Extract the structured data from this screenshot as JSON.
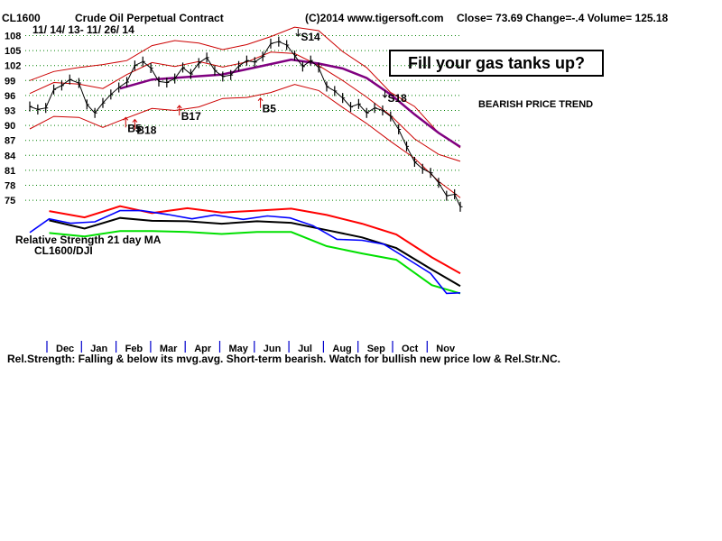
{
  "header": {
    "ticker": "CL1600",
    "contract": "Crude Oil Perpetual Contract",
    "copyright": "(C)2014 www.tigersoft.com",
    "quote": "Close=  73.69  Change=-.4 Volume= 125.18",
    "date_range": "11/ 14/ 13- 11/ 26/ 14"
  },
  "callout": "Fill your gas tanks up?",
  "trend_label": "BEARISH PRICE TREND",
  "rs_label_1": "Relative Strength 21 day MA",
  "rs_label_2": "CL1600/DJI",
  "footer": "Rel.Strength: Falling & below its mvg.avg. Short-term bearish. Watch for bullish new price low & Rel.Str.NC.",
  "colors": {
    "price": "#000000",
    "bands": "#cc0000",
    "ma": "#800080",
    "rs_upper": "#ff0000",
    "rs_lower": "#00e000",
    "rs_ma": "#000000",
    "rs_line": "#0000ff",
    "grid": "#008000"
  },
  "chart_data": {
    "type": "line",
    "ylim": [
      72,
      110
    ],
    "y_ticks": [
      108,
      105,
      102,
      99,
      96,
      93,
      90,
      87,
      84,
      81,
      78,
      75
    ],
    "x_start": "2013-11-14",
    "x_end": "2014-11-26",
    "months": [
      "Dec",
      "Jan",
      "Feb",
      "Mar",
      "Apr",
      "May",
      "Jun",
      "Jul",
      "Aug",
      "Sep",
      "Oct",
      "Nov"
    ],
    "grid": true,
    "series": [
      {
        "role": "price",
        "x": [
          "2013-11-14",
          "2013-11-21",
          "2013-11-28",
          "2013-12-05",
          "2013-12-12",
          "2013-12-19",
          "2013-12-27",
          "2014-01-03",
          "2014-01-10",
          "2014-01-17",
          "2014-01-24",
          "2014-01-31",
          "2014-02-07",
          "2014-02-14",
          "2014-02-21",
          "2014-02-28",
          "2014-03-07",
          "2014-03-14",
          "2014-03-21",
          "2014-03-28",
          "2014-04-04",
          "2014-04-11",
          "2014-04-18",
          "2014-04-25",
          "2014-05-02",
          "2014-05-09",
          "2014-05-16",
          "2014-05-23",
          "2014-05-30",
          "2014-06-06",
          "2014-06-13",
          "2014-06-20",
          "2014-06-27",
          "2014-07-04",
          "2014-07-11",
          "2014-07-18",
          "2014-07-25",
          "2014-08-01",
          "2014-08-08",
          "2014-08-15",
          "2014-08-22",
          "2014-08-29",
          "2014-09-05",
          "2014-09-12",
          "2014-09-19",
          "2014-09-26",
          "2014-10-03",
          "2014-10-10",
          "2014-10-17",
          "2014-10-24",
          "2014-10-31",
          "2014-11-07",
          "2014-11-14",
          "2014-11-21",
          "2014-11-26"
        ],
        "values": [
          93.8,
          93.2,
          93.5,
          97.2,
          98.0,
          99.2,
          98.5,
          94.2,
          92.5,
          94.5,
          96.2,
          97.6,
          98.7,
          102.0,
          102.8,
          101.5,
          98.8,
          98.6,
          99.4,
          101.6,
          100.3,
          102.5,
          103.6,
          101.0,
          99.8,
          100.1,
          101.9,
          103.0,
          102.7,
          103.8,
          106.4,
          106.8,
          106.1,
          104.0,
          101.8,
          103.0,
          101.6,
          97.8,
          96.9,
          95.5,
          93.7,
          94.3,
          92.5,
          93.5,
          93.0,
          91.8,
          89.2,
          85.8,
          82.7,
          81.3,
          80.5,
          78.5,
          75.9,
          76.2,
          73.7
        ]
      },
      {
        "role": "upper-band",
        "x": [
          "2013-11-14",
          "2013-12-05",
          "2013-12-27",
          "2014-01-17",
          "2014-02-07",
          "2014-03-01",
          "2014-03-21",
          "2014-04-11",
          "2014-05-02",
          "2014-05-23",
          "2014-06-13",
          "2014-07-04",
          "2014-07-25",
          "2014-08-15",
          "2014-09-05",
          "2014-09-26",
          "2014-10-17",
          "2014-11-07",
          "2014-11-26"
        ],
        "values": [
          99.0,
          100.8,
          101.6,
          102.2,
          103.0,
          106.0,
          107.0,
          106.5,
          105.2,
          106.2,
          107.8,
          109.7,
          109.0,
          104.8,
          101.6,
          96.6,
          93.8,
          88.5,
          85.5
        ]
      },
      {
        "role": "middle-band",
        "x": [
          "2013-11-14",
          "2013-12-05",
          "2013-12-27",
          "2014-01-17",
          "2014-02-07",
          "2014-03-01",
          "2014-03-21",
          "2014-04-11",
          "2014-05-02",
          "2014-05-23",
          "2014-06-13",
          "2014-07-04",
          "2014-07-25",
          "2014-08-15",
          "2014-09-05",
          "2014-09-26",
          "2014-10-17",
          "2014-11-07",
          "2014-11-26"
        ],
        "values": [
          96.4,
          98.6,
          98.3,
          97.4,
          100.2,
          102.6,
          101.8,
          102.8,
          101.7,
          102.7,
          104.7,
          104.4,
          102.0,
          99.0,
          95.7,
          92.0,
          87.3,
          84.2,
          82.8
        ]
      },
      {
        "role": "lower-band",
        "x": [
          "2013-11-14",
          "2013-12-05",
          "2013-12-27",
          "2014-01-17",
          "2014-02-07",
          "2014-03-01",
          "2014-03-21",
          "2014-04-11",
          "2014-05-02",
          "2014-05-23",
          "2014-06-13",
          "2014-07-04",
          "2014-07-25",
          "2014-08-15",
          "2014-09-05",
          "2014-09-26",
          "2014-10-17",
          "2014-11-07",
          "2014-11-26"
        ],
        "values": [
          89.3,
          91.8,
          91.6,
          89.6,
          91.5,
          93.4,
          93.0,
          93.7,
          95.4,
          95.6,
          96.6,
          98.2,
          97.0,
          93.6,
          90.4,
          86.8,
          83.4,
          78.8,
          75.5
        ]
      },
      {
        "role": "moving-average",
        "x": [
          "2014-02-01",
          "2014-03-01",
          "2014-04-01",
          "2014-05-01",
          "2014-06-01",
          "2014-07-01",
          "2014-07-25",
          "2014-08-15",
          "2014-09-05",
          "2014-09-26",
          "2014-10-17",
          "2014-11-07",
          "2014-11-26"
        ],
        "values": [
          97.4,
          99.2,
          99.7,
          100.2,
          101.7,
          103.2,
          102.4,
          101.4,
          99.5,
          96.2,
          92.2,
          88.5,
          85.7
        ]
      }
    ],
    "relative_strength": {
      "series": [
        {
          "role": "rs-upper",
          "x": [
            "2013-12-01",
            "2014-01-01",
            "2014-02-01",
            "2014-03-01",
            "2014-04-01",
            "2014-05-01",
            "2014-06-01",
            "2014-07-01",
            "2014-08-01",
            "2014-09-01",
            "2014-10-01",
            "2014-11-01",
            "2014-11-26"
          ],
          "values": [
            78.5,
            77.2,
            79.5,
            78.1,
            79.1,
            78.2,
            78.6,
            79.0,
            77.7,
            75.9,
            73.7,
            69.0,
            65.7
          ]
        },
        {
          "role": "rs-ma",
          "x": [
            "2013-12-01",
            "2014-01-01",
            "2014-02-01",
            "2014-03-01",
            "2014-04-01",
            "2014-05-01",
            "2014-06-01",
            "2014-07-01",
            "2014-08-01",
            "2014-09-01",
            "2014-10-01",
            "2014-11-01",
            "2014-11-26"
          ],
          "values": [
            76.6,
            74.9,
            77.1,
            76.5,
            76.4,
            75.9,
            76.4,
            76.1,
            74.6,
            73.1,
            70.9,
            66.5,
            63.1
          ]
        },
        {
          "role": "rs-lower",
          "x": [
            "2013-12-01",
            "2014-01-01",
            "2014-02-01",
            "2014-03-01",
            "2014-04-01",
            "2014-05-01",
            "2014-06-01",
            "2014-07-01",
            "2014-08-01",
            "2014-09-01",
            "2014-10-01",
            "2014-11-01",
            "2014-11-26"
          ],
          "values": [
            74.0,
            73.3,
            74.4,
            74.4,
            74.2,
            73.8,
            74.2,
            74.2,
            71.3,
            69.8,
            68.5,
            63.3,
            61.6
          ]
        },
        {
          "role": "rs-line",
          "x": [
            "2013-11-14",
            "2013-12-01",
            "2013-12-20",
            "2014-01-10",
            "2014-02-01",
            "2014-02-20",
            "2014-03-15",
            "2014-04-05",
            "2014-04-25",
            "2014-05-20",
            "2014-06-10",
            "2014-06-30",
            "2014-07-20",
            "2014-08-10",
            "2014-09-01",
            "2014-09-20",
            "2014-10-10",
            "2014-10-31",
            "2014-11-14",
            "2014-11-26"
          ],
          "values": [
            74.1,
            76.9,
            76.0,
            76.3,
            78.6,
            78.6,
            77.8,
            76.9,
            77.7,
            76.8,
            77.5,
            77.1,
            75.5,
            72.7,
            72.5,
            71.7,
            68.8,
            65.7,
            61.6,
            61.7
          ]
        }
      ]
    },
    "annotations": [
      {
        "text": "S14",
        "x": "2014-07-07",
        "y": 107.9,
        "type": "sell"
      },
      {
        "text": "S18",
        "x": "2014-09-21",
        "y": 95.6,
        "type": "sell"
      },
      {
        "text": "B5",
        "x": "2014-02-06",
        "y": 89.6,
        "type": "buy"
      },
      {
        "text": "B18",
        "x": "2014-02-14",
        "y": 89.2,
        "type": "buy"
      },
      {
        "text": "B17",
        "x": "2014-03-25",
        "y": 92.0,
        "type": "buy"
      },
      {
        "text": "B5",
        "x": "2014-06-04",
        "y": 93.5,
        "type": "buy"
      }
    ]
  }
}
